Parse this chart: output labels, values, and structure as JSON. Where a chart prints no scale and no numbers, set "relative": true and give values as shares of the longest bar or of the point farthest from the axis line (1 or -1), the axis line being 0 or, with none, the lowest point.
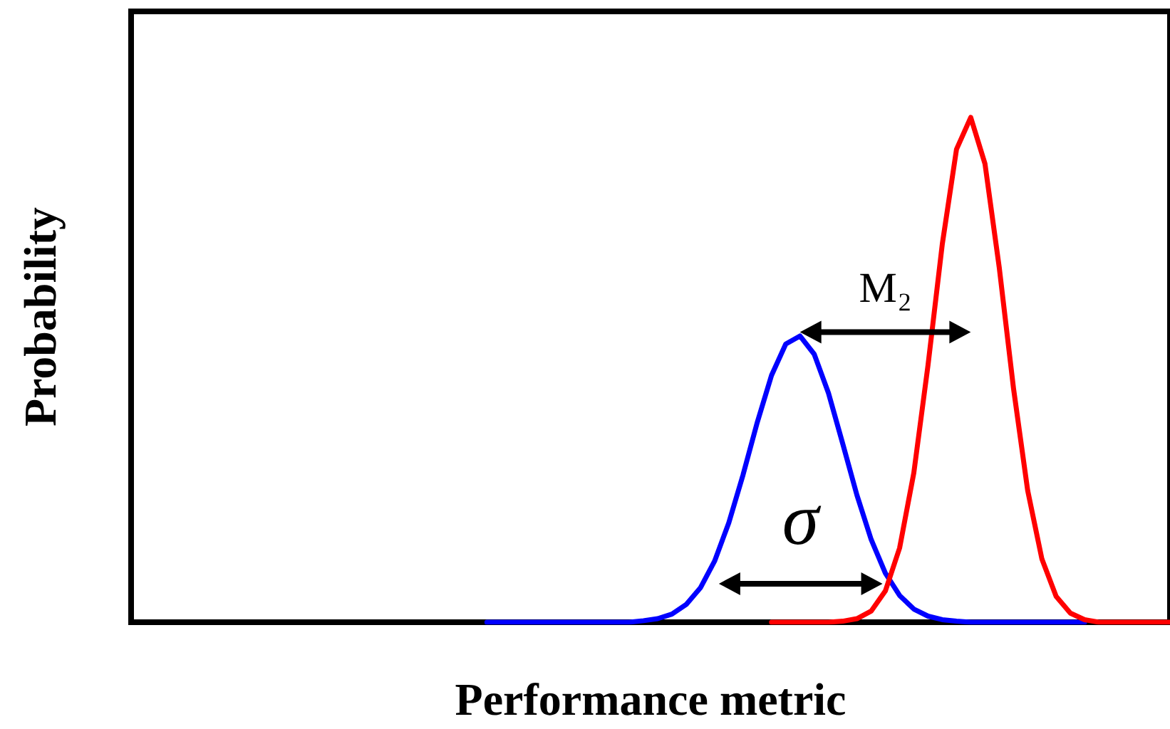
{
  "chart_data": {
    "type": "line",
    "relative": true,
    "xlabel": "Performance metric",
    "ylabel": "Probability",
    "categories": [
      null,
      null,
      null,
      null,
      null,
      null,
      null,
      null,
      null,
      null,
      null,
      null,
      null,
      null,
      null,
      null,
      null,
      null,
      null,
      null,
      null,
      null,
      null,
      null,
      null,
      null,
      null,
      null,
      null,
      null,
      null,
      null,
      null,
      null,
      null,
      null,
      null,
      null,
      null,
      null,
      null,
      null,
      null,
      null,
      null,
      null,
      null,
      null,
      null,
      null,
      null,
      null,
      null,
      null,
      null,
      null,
      null,
      null,
      null,
      null,
      null,
      null,
      null,
      null,
      null,
      null,
      null,
      null,
      null,
      null,
      null,
      null,
      null,
      null
    ],
    "series": [
      {
        "color": "#0000ff",
        "values": [
          null,
          null,
          null,
          null,
          null,
          null,
          null,
          null,
          null,
          null,
          null,
          null,
          null,
          null,
          null,
          null,
          null,
          null,
          null,
          null,
          null,
          null,
          null,
          null,
          null,
          0,
          0,
          0,
          0,
          0,
          0,
          0,
          0,
          0,
          0,
          0,
          0.003,
          0.007,
          0.016,
          0.035,
          0.068,
          0.121,
          0.197,
          0.292,
          0.396,
          0.489,
          0.551,
          0.567,
          0.531,
          0.454,
          0.354,
          0.252,
          0.164,
          0.097,
          0.053,
          0.026,
          0.012,
          0.005,
          0.002,
          0,
          0,
          0,
          0,
          0,
          0,
          0,
          0,
          0,
          null,
          null,
          null,
          null,
          null,
          null
        ]
      },
      {
        "color": "#ff0000",
        "values": [
          null,
          null,
          null,
          null,
          null,
          null,
          null,
          null,
          null,
          null,
          null,
          null,
          null,
          null,
          null,
          null,
          null,
          null,
          null,
          null,
          null,
          null,
          null,
          null,
          null,
          null,
          null,
          null,
          null,
          null,
          null,
          null,
          null,
          null,
          null,
          null,
          null,
          null,
          null,
          null,
          null,
          null,
          null,
          null,
          null,
          0,
          0,
          0,
          0,
          0,
          0.002,
          0.007,
          0.022,
          0.062,
          0.147,
          0.296,
          0.51,
          0.749,
          0.937,
          1,
          0.908,
          0.703,
          0.464,
          0.261,
          0.125,
          0.051,
          0.018,
          0.005,
          0,
          0,
          0,
          0,
          0,
          0
        ]
      }
    ],
    "annotations": [
      "M₂",
      "σ"
    ],
    "tick_labels": false,
    "grid": false,
    "marker": "none",
    "line_style": "solid"
  }
}
